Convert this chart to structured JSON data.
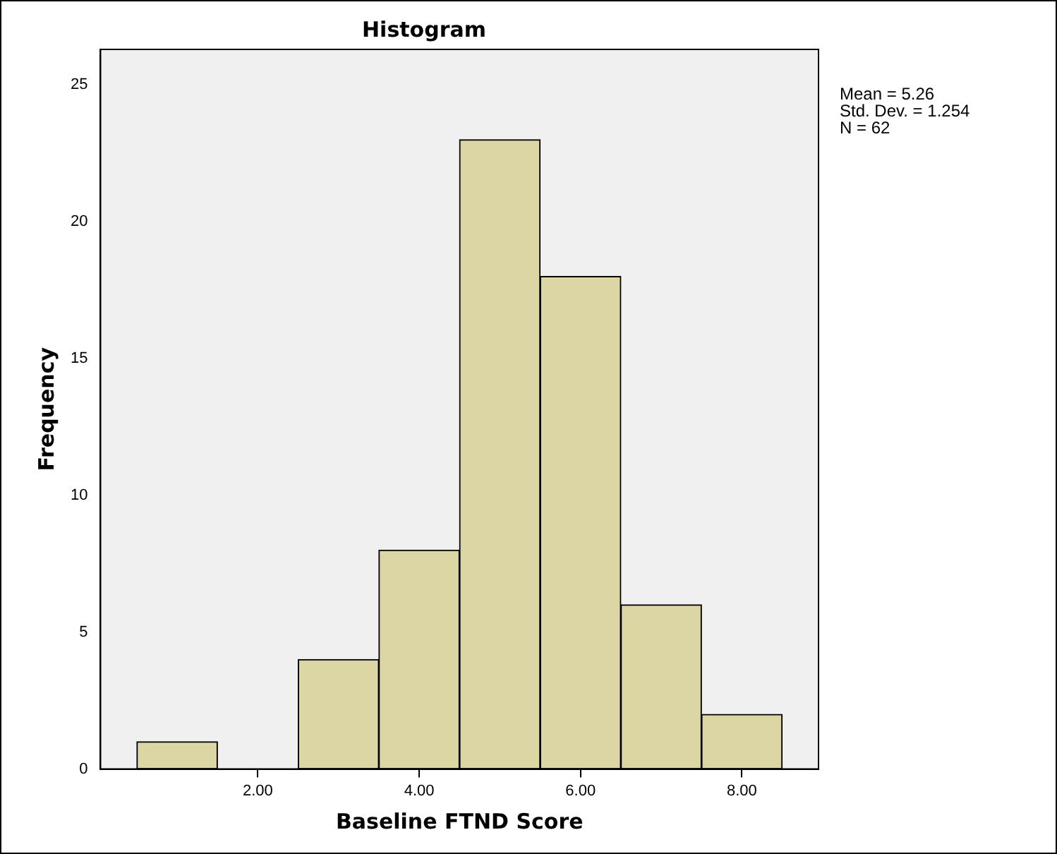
{
  "chart_data": {
    "type": "histogram",
    "title": "Histogram",
    "xlabel": "Baseline FTND Score",
    "ylabel": "Frequency",
    "bins": [
      0.5,
      1.5,
      2.5,
      3.5,
      4.5,
      5.5,
      6.5,
      7.5,
      8.5
    ],
    "values": [
      1,
      0,
      4,
      8,
      23,
      18,
      6,
      2
    ],
    "color": "#dcd6a5",
    "xlim": [
      0.05,
      8.95
    ],
    "xticks": [
      {
        "value": 2,
        "label": "2.00"
      },
      {
        "value": 4,
        "label": "4.00"
      },
      {
        "value": 6,
        "label": "6.00"
      },
      {
        "value": 8,
        "label": "8.00"
      }
    ],
    "ylim": [
      0,
      26.3
    ],
    "yticks": [
      0,
      5,
      10,
      15,
      20,
      25
    ],
    "grid": false,
    "legend": false,
    "annotations": [
      "Mean = 5.26",
      "Std. Dev. = 1.254",
      "N = 62"
    ]
  }
}
